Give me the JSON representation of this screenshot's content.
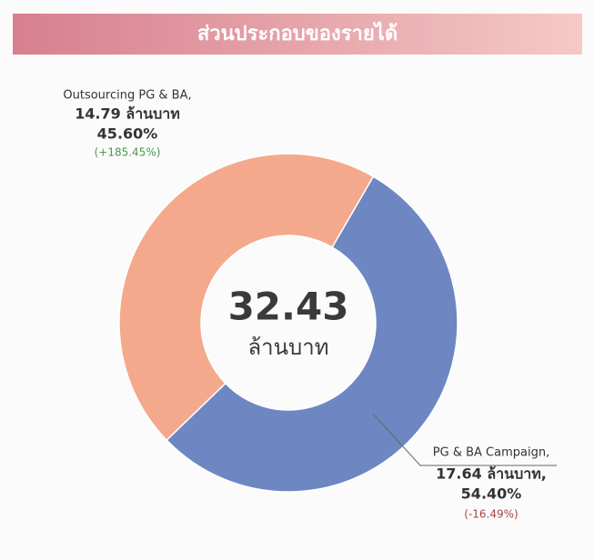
{
  "header": {
    "title": "ส่วนประกอบของรายได้"
  },
  "chart_data": {
    "type": "pie",
    "donut": true,
    "categories": [
      "Outsourcing PG & BA,",
      "PG & BA Campaign,"
    ],
    "values": [
      45.6,
      54.4
    ],
    "value_labels": [
      "45.60%",
      "54.40%"
    ],
    "amount_labels": [
      "14.79 ล้านบาท",
      "17.64 ล้านบาท,"
    ],
    "change_labels": [
      "(+185.45%)",
      "(-16.49%)"
    ],
    "change_colors": [
      "#4a9a4a",
      "#a94442"
    ],
    "colors": [
      "#f4a98c",
      "#6e87c2"
    ],
    "center_value": "32.43",
    "center_unit": "ล้านบาท"
  }
}
